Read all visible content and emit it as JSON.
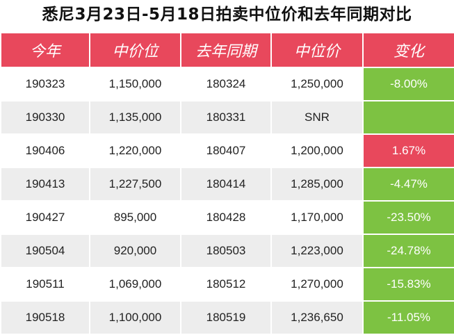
{
  "title": "悉尼3月23日-5月18日拍卖中位价和去年同期对比",
  "headers": [
    "今年",
    "中价位",
    "去年同期",
    "中位价",
    "变化"
  ],
  "colors": {
    "header": "#e8485c",
    "negative": "#7dc242",
    "positive": "#e8485c",
    "stripe": "#ededed"
  },
  "rows": [
    {
      "this_year": "190323",
      "median": "1,150,000",
      "last_year": "180324",
      "last_median": "1,250,000",
      "change": "-8.00%",
      "trend": "neg"
    },
    {
      "this_year": "190330",
      "median": "1,135,000",
      "last_year": "180331",
      "last_median": "SNR",
      "change": "",
      "trend": "blank"
    },
    {
      "this_year": "190406",
      "median": "1,220,000",
      "last_year": "180407",
      "last_median": "1,200,000",
      "change": "1.67%",
      "trend": "pos"
    },
    {
      "this_year": "190413",
      "median": "1,227,500",
      "last_year": "180414",
      "last_median": "1,285,000",
      "change": "-4.47%",
      "trend": "neg"
    },
    {
      "this_year": "190427",
      "median": "895,000",
      "last_year": "180428",
      "last_median": "1,170,000",
      "change": "-23.50%",
      "trend": "neg"
    },
    {
      "this_year": "190504",
      "median": "920,000",
      "last_year": "180503",
      "last_median": "1,223,000",
      "change": "-24.78%",
      "trend": "neg"
    },
    {
      "this_year": "190511",
      "median": "1,069,000",
      "last_year": "180512",
      "last_median": "1,270,000",
      "change": "-15.83%",
      "trend": "neg"
    },
    {
      "this_year": "190518",
      "median": "1,100,000",
      "last_year": "180519",
      "last_median": "1,236,650",
      "change": "-11.05%",
      "trend": "neg"
    }
  ]
}
